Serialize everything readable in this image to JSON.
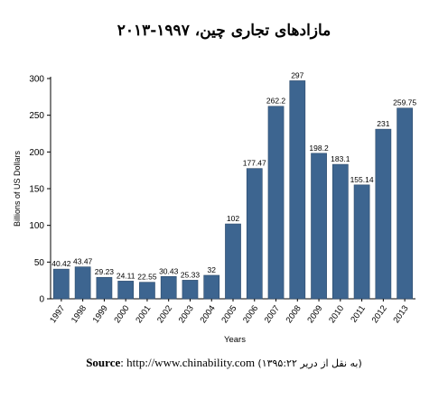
{
  "page": {
    "title": "مازادهای تجاری چین، ۱۹۹۷-۲۰۱۳",
    "source_label": "Source",
    "source_url": "http://www.chinability.com",
    "source_note": "(به نقل از دریر ۱۳۹۵:۲۲)"
  },
  "chart_data": {
    "type": "bar",
    "title": "مازادهای تجاری چین، ۱۹۹۷-۲۰۱۳",
    "xlabel": "Years",
    "ylabel": "Billions of US Dollars",
    "ylim": [
      0,
      300
    ],
    "yticks": [
      0,
      50,
      100,
      150,
      200,
      250,
      300
    ],
    "categories": [
      "1997",
      "1998",
      "1999",
      "2000",
      "2001",
      "2002",
      "2003",
      "2004",
      "2005",
      "2006",
      "2007",
      "2008",
      "2009",
      "2010",
      "2011",
      "2012",
      "2013"
    ],
    "values": [
      40.42,
      43.47,
      29.23,
      24.11,
      22.55,
      30.43,
      25.33,
      32,
      102,
      177.47,
      262.2,
      297,
      198.2,
      183.1,
      155.14,
      231,
      259.75
    ],
    "data_labels": [
      "40.42",
      "43.47",
      "29.23",
      "24.11",
      "22.55",
      "30.43",
      "25.33",
      "32",
      "102",
      "177.47",
      "262.2",
      "297",
      "198.2",
      "183.1",
      "155.14",
      "231",
      "259.75"
    ],
    "bar_color": "#3d6590",
    "grid": false,
    "legend": "none"
  }
}
